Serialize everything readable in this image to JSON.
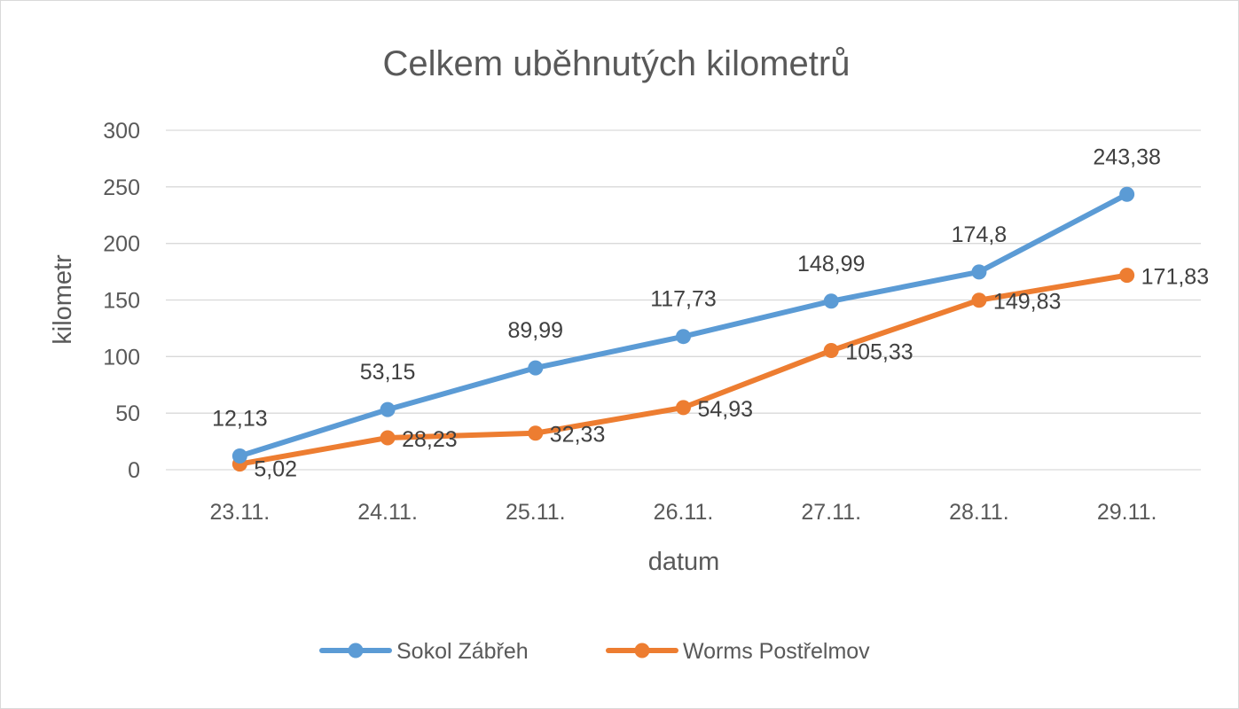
{
  "chart_data": {
    "type": "line",
    "title": "Celkem uběhnutých kilometrů",
    "xlabel": "datum",
    "ylabel": "kilometr",
    "categories": [
      "23.11.",
      "24.11.",
      "25.11.",
      "26.11.",
      "27.11.",
      "28.11.",
      "29.11."
    ],
    "ylim": [
      0,
      300
    ],
    "yticks": [
      0,
      50,
      100,
      150,
      200,
      250,
      300
    ],
    "grid": true,
    "legend_position": "bottom",
    "series": [
      {
        "name": "Sokol Zábřeh",
        "color": "#5b9bd5",
        "values": [
          12.13,
          53.15,
          89.99,
          117.73,
          148.99,
          174.8,
          243.38
        ],
        "labels": [
          "12,13",
          "53,15",
          "89,99",
          "117,73",
          "148,99",
          "174,8",
          "243,38"
        ],
        "label_position": "above"
      },
      {
        "name": "Worms Postřelmov",
        "color": "#ed7d31",
        "values": [
          5.02,
          28.23,
          32.33,
          54.93,
          105.33,
          149.83,
          171.83
        ],
        "labels": [
          "5,02",
          "28,23",
          "32,33",
          "54,93",
          "105,33",
          "149,83",
          "171,83"
        ],
        "label_position": "right"
      }
    ]
  }
}
